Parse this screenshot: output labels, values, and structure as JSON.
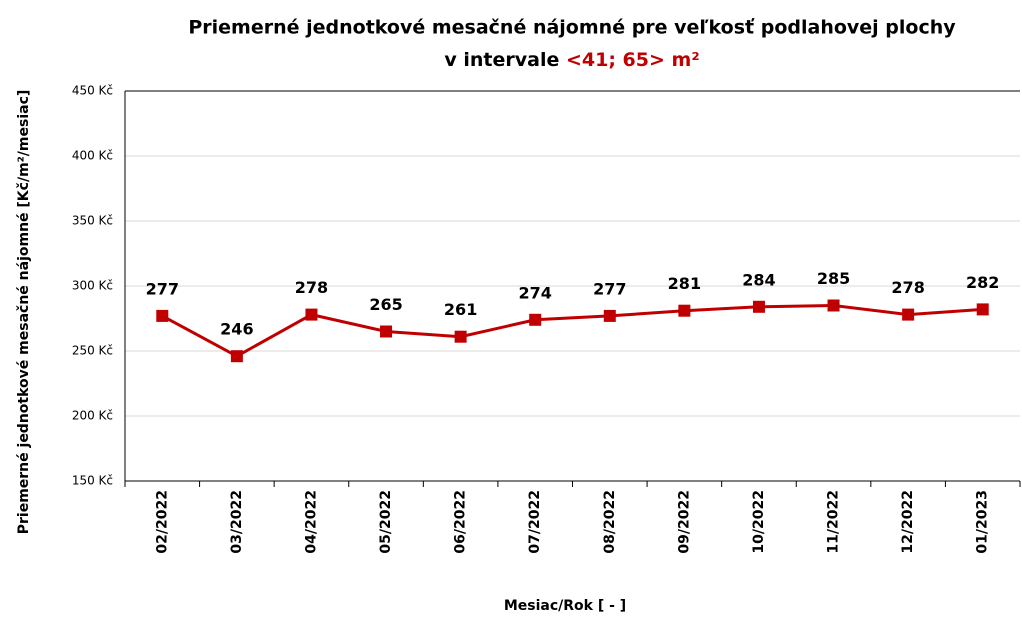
{
  "chart_data": {
    "type": "line",
    "title": {
      "line1": "Priemerné jednotkové mesačné nájomné pre veľkosť podlahovej plochy",
      "line2": "v intervale",
      "highlight": "<41; 65> m²"
    },
    "y_axis_label": "Priemerné jednotkové mesačné nájomné [Kč/m²/mesiac]",
    "x_axis_label": "Mesiac/Rok [ - ]",
    "categories": [
      "02/2022",
      "03/2022",
      "04/2022",
      "05/2022",
      "06/2022",
      "07/2022",
      "08/2022",
      "09/2022",
      "10/2022",
      "11/2022",
      "12/2022",
      "01/2023"
    ],
    "values": [
      277,
      246,
      278,
      265,
      261,
      274,
      277,
      281,
      284,
      285,
      278,
      282
    ],
    "color": "#c00000",
    "ylim": [
      150,
      450
    ],
    "yticks": [
      {
        "value": 150,
        "label": "150 Kč"
      },
      {
        "value": 200,
        "label": "200 Kč"
      },
      {
        "value": 250,
        "label": "250 Kč"
      },
      {
        "value": 300,
        "label": "300 Kč"
      },
      {
        "value": 350,
        "label": "350 Kč"
      },
      {
        "value": 400,
        "label": "400 Kč"
      },
      {
        "value": 450,
        "label": "450 Kč"
      }
    ],
    "grid": true
  }
}
